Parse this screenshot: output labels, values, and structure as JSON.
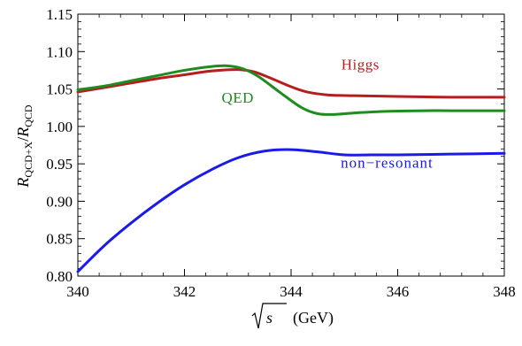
{
  "chart_data": {
    "type": "line",
    "xlabel": "(GeV)",
    "xlabel_symbol": "s",
    "ylabel_main": "R",
    "ylabel_num_sub": "QCD+X",
    "ylabel_den": "R",
    "ylabel_den_sub": "QCD",
    "ylabel_slash": "/",
    "xlim": [
      340,
      348
    ],
    "ylim": [
      0.8,
      1.15
    ],
    "xticks": [
      340,
      342,
      344,
      346,
      348
    ],
    "xtick_labels": [
      "340",
      "342",
      "344",
      "346",
      "348"
    ],
    "yticks": [
      0.8,
      0.85,
      0.9,
      0.95,
      1.0,
      1.05,
      1.1,
      1.15
    ],
    "ytick_labels": [
      "0.80",
      "0.85",
      "0.90",
      "0.95",
      "1.00",
      "1.05",
      "1.10",
      "1.15"
    ],
    "grid": false,
    "legend": "none (inline labels)",
    "series": [
      {
        "name": "Higgs",
        "color": "#b41e1e",
        "label_at": [
          345.3,
          1.076
        ],
        "x": [
          340,
          340.5,
          341,
          341.5,
          342,
          342.5,
          343,
          343.3,
          343.6,
          344,
          344.3,
          344.7,
          345.2,
          346,
          347,
          348
        ],
        "y": [
          1.046,
          1.052,
          1.058,
          1.064,
          1.069,
          1.074,
          1.076,
          1.073,
          1.065,
          1.053,
          1.046,
          1.042,
          1.041,
          1.04,
          1.039,
          1.039
        ]
      },
      {
        "name": "QED",
        "color": "#1e8c1e",
        "label_at": [
          343.0,
          1.032
        ],
        "x": [
          340,
          340.5,
          341,
          341.5,
          342,
          342.5,
          342.8,
          343.1,
          343.4,
          343.8,
          344.2,
          344.5,
          344.8,
          345.2,
          345.7,
          346.5,
          347,
          348
        ],
        "y": [
          1.049,
          1.054,
          1.061,
          1.068,
          1.075,
          1.08,
          1.081,
          1.077,
          1.066,
          1.045,
          1.025,
          1.017,
          1.016,
          1.018,
          1.02,
          1.021,
          1.021,
          1.021
        ]
      },
      {
        "name": "non-resonant",
        "display_name": "non−resonant",
        "color": "#1a1aeb",
        "label_at": [
          345.8,
          0.945
        ],
        "x": [
          340,
          340.5,
          341,
          341.5,
          342,
          342.5,
          343,
          343.5,
          344,
          344.5,
          345,
          345.5,
          346,
          347,
          348
        ],
        "y": [
          0.806,
          0.841,
          0.871,
          0.898,
          0.922,
          0.942,
          0.958,
          0.967,
          0.969,
          0.966,
          0.962,
          0.962,
          0.962,
          0.963,
          0.964
        ]
      }
    ]
  }
}
